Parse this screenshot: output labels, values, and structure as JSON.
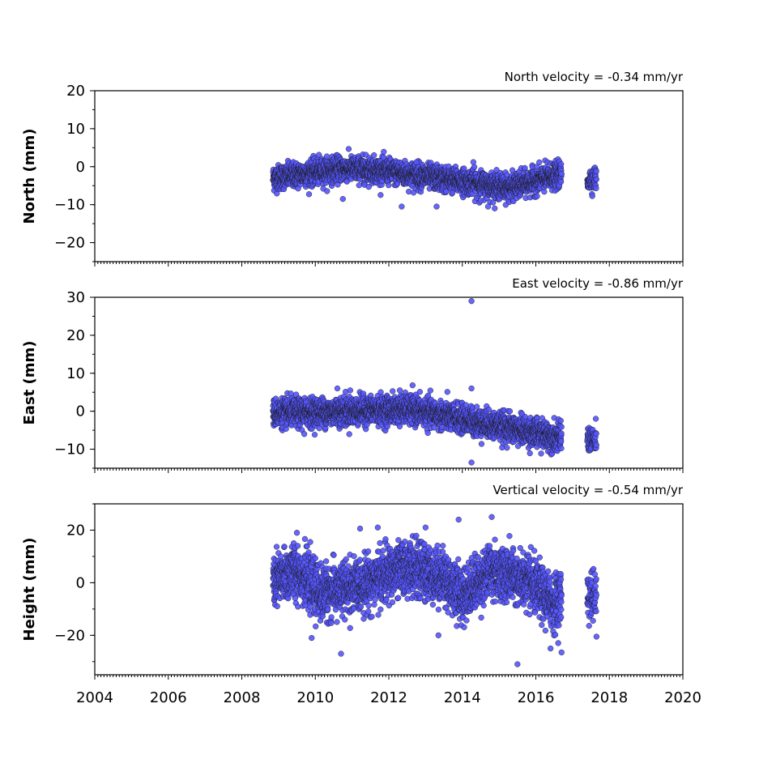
{
  "chart_data": [
    {
      "type": "scatter",
      "title": "North velocity = -0.34 mm/yr",
      "ylabel": "North (mm)",
      "xlim": [
        2004,
        2020
      ],
      "ylim": [
        -25,
        20
      ],
      "yticks": [
        20,
        10,
        0,
        -10,
        -20
      ],
      "ytick_labels": [
        "20",
        "10",
        "0",
        "−10",
        "−20"
      ],
      "marker_color": "#5555ff",
      "segments": [
        {
          "start": 2008.85,
          "end": 2016.7,
          "trend": [
            [
              2008.85,
              -3.0
            ],
            [
              2010.7,
              -0.5
            ],
            [
              2011.6,
              -0.8
            ],
            [
              2015.3,
              -5.5
            ],
            [
              2016.7,
              -2.0
            ]
          ],
          "spread": 1.6,
          "step": 0.0028
        },
        {
          "start": 2017.4,
          "end": 2017.65,
          "trend": [
            [
              2017.4,
              -3.5
            ],
            [
              2017.65,
              -3.0
            ]
          ],
          "spread": 1.5,
          "step": 0.004
        }
      ],
      "outliers": [
        [
          2010.75,
          -8.5
        ],
        [
          2012.35,
          -10.5
        ],
        [
          2013.3,
          -10.5
        ],
        [
          2012.75,
          1.2
        ],
        [
          2014.3,
          1.2
        ],
        [
          2014.7,
          -10.5
        ],
        [
          2014.5,
          -9.0
        ]
      ]
    },
    {
      "type": "scatter",
      "title": "East velocity = -0.86 mm/yr",
      "ylabel": "East (mm)",
      "xlim": [
        2004,
        2020
      ],
      "ylim": [
        -15,
        30
      ],
      "yticks": [
        30,
        20,
        10,
        0,
        -10
      ],
      "ytick_labels": [
        "30",
        "20",
        "10",
        "0",
        "−10"
      ],
      "marker_color": "#5555ff",
      "segments": [
        {
          "start": 2008.85,
          "end": 2016.7,
          "trend": [
            [
              2008.85,
              -0.5
            ],
            [
              2012.6,
              0.5
            ],
            [
              2014.2,
              -2.5
            ],
            [
              2016.7,
              -7.0
            ]
          ],
          "spread": 1.8,
          "step": 0.0028
        },
        {
          "start": 2017.4,
          "end": 2017.65,
          "trend": [
            [
              2017.4,
              -7.0
            ],
            [
              2017.65,
              -8.0
            ]
          ],
          "spread": 1.8,
          "step": 0.004
        }
      ],
      "outliers": [
        [
          2014.25,
          29.0
        ],
        [
          2014.25,
          6.0
        ],
        [
          2014.25,
          -13.5
        ],
        [
          2010.6,
          6.0
        ],
        [
          2012.3,
          5.5
        ],
        [
          2009.7,
          -6.0
        ],
        [
          2010.95,
          5.5
        ]
      ]
    },
    {
      "type": "scatter",
      "title": "Vertical velocity = -0.54 mm/yr",
      "ylabel": "Height (mm)",
      "xlim": [
        2004,
        2020
      ],
      "xticks": [
        2004,
        2006,
        2008,
        2010,
        2012,
        2014,
        2016,
        2018,
        2020
      ],
      "xtick_labels": [
        "2004",
        "2006",
        "2008",
        "2010",
        "2012",
        "2014",
        "2016",
        "2018",
        "2020"
      ],
      "ylim": [
        -35,
        30
      ],
      "yticks": [
        20,
        0,
        -20
      ],
      "ytick_labels": [
        "20",
        "0",
        "−20"
      ],
      "marker_color": "#5555ff",
      "segments": [
        {
          "start": 2008.85,
          "end": 2016.7,
          "trend": [
            [
              2008.85,
              0.0
            ],
            [
              2009.5,
              5.0
            ],
            [
              2010.1,
              -4.0
            ],
            [
              2011.0,
              -2.0
            ],
            [
              2012.5,
              6.0
            ],
            [
              2013.5,
              2.0
            ],
            [
              2014.0,
              -5.0
            ],
            [
              2014.8,
              5.0
            ],
            [
              2015.8,
              0.0
            ],
            [
              2016.5,
              -8.0
            ],
            [
              2016.7,
              -5.0
            ]
          ],
          "spread": 5.0,
          "step": 0.0028
        },
        {
          "start": 2017.4,
          "end": 2017.65,
          "trend": [
            [
              2017.4,
              -4.0
            ],
            [
              2017.65,
              -6.0
            ]
          ],
          "spread": 5.0,
          "step": 0.004
        }
      ],
      "outliers": [
        [
          2010.7,
          -27.0
        ],
        [
          2015.5,
          -31.0
        ],
        [
          2014.8,
          25.0
        ],
        [
          2013.9,
          24.0
        ],
        [
          2013.0,
          21.0
        ],
        [
          2011.7,
          21.0
        ],
        [
          2009.5,
          19.0
        ],
        [
          2016.4,
          -25.0
        ],
        [
          2016.7,
          -26.5
        ],
        [
          2009.9,
          -21.0
        ],
        [
          2013.35,
          -20.0
        ],
        [
          2017.65,
          -20.5
        ]
      ]
    }
  ]
}
